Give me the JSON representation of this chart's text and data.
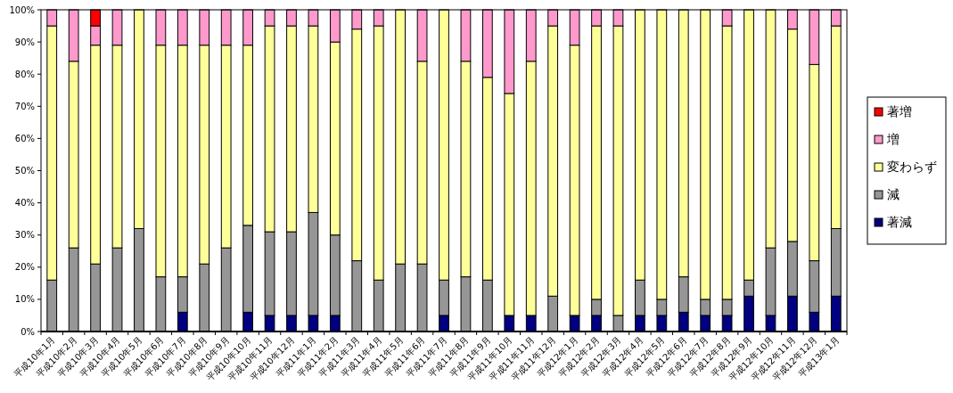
{
  "chart_data": {
    "type": "bar",
    "stacked": true,
    "legend": "right",
    "categories": [
      "平成10年1月",
      "平成10年2月",
      "平成10年3月",
      "平成10年4月",
      "平成10年5月",
      "平成10年6月",
      "平成10年7月",
      "平成10年8月",
      "平成10年9月",
      "平成10年10月",
      "平成10年11月",
      "平成10年12月",
      "平成11年1月",
      "平成11年2月",
      "平成11年3月",
      "平成11年4月",
      "平成11年5月",
      "平成11年6月",
      "平成11年7月",
      "平成11年8月",
      "平成11年9月",
      "平成11年10月",
      "平成11年11月",
      "平成11年12月",
      "平成12年1月",
      "平成12年2月",
      "平成12年3月",
      "平成12年4月",
      "平成12年5月",
      "平成12年6月",
      "平成12年7月",
      "平成12年8月",
      "平成12年9月",
      "平成12年10月",
      "平成12年11月",
      "平成12年12月",
      "平成13年1月"
    ],
    "series": [
      {
        "name": "著減",
        "color": "#000080",
        "values": [
          0,
          0,
          0,
          0,
          0,
          0,
          6,
          0,
          0,
          6,
          5,
          5,
          5,
          5,
          0,
          0,
          0,
          0,
          5,
          0,
          0,
          5,
          5,
          0,
          5,
          5,
          0,
          5,
          5,
          6,
          5,
          5,
          11,
          5,
          11,
          6,
          11
        ]
      },
      {
        "name": "減",
        "color": "#969696",
        "values": [
          16,
          26,
          21,
          26,
          32,
          17,
          11,
          21,
          26,
          27,
          26,
          26,
          32,
          25,
          22,
          16,
          21,
          21,
          11,
          17,
          16,
          0,
          0,
          11,
          0,
          5,
          5,
          11,
          5,
          11,
          5,
          5,
          5,
          21,
          17,
          16,
          21
        ]
      },
      {
        "name": "変わらず",
        "color": "#ffff99",
        "values": [
          79,
          58,
          68,
          63,
          68,
          72,
          72,
          68,
          63,
          56,
          64,
          64,
          58,
          60,
          72,
          79,
          79,
          63,
          84,
          67,
          63,
          69,
          79,
          84,
          84,
          85,
          90,
          84,
          90,
          83,
          90,
          85,
          84,
          74,
          66,
          61,
          63
        ]
      },
      {
        "name": "増",
        "color": "#ff99cc",
        "values": [
          5,
          16,
          6,
          11,
          0,
          11,
          11,
          11,
          11,
          11,
          5,
          5,
          5,
          10,
          6,
          5,
          0,
          16,
          0,
          16,
          21,
          26,
          16,
          5,
          11,
          5,
          5,
          0,
          0,
          0,
          0,
          5,
          0,
          0,
          6,
          17,
          5
        ]
      },
      {
        "name": "著増",
        "color": "#ff0000",
        "values": [
          0,
          0,
          5,
          0,
          0,
          0,
          0,
          0,
          0,
          0,
          0,
          0,
          0,
          0,
          0,
          0,
          0,
          0,
          0,
          0,
          0,
          0,
          0,
          0,
          0,
          0,
          0,
          0,
          0,
          0,
          0,
          0,
          0,
          0,
          0,
          0,
          0
        ]
      }
    ],
    "ylim": [
      0,
      100
    ],
    "yticks": [
      {
        "value": 0,
        "label": "0%"
      },
      {
        "value": 10,
        "label": "10%"
      },
      {
        "value": 20,
        "label": "20%"
      },
      {
        "value": 30,
        "label": "30%"
      },
      {
        "value": 40,
        "label": "40%"
      },
      {
        "value": 50,
        "label": "50%"
      },
      {
        "value": 60,
        "label": "60%"
      },
      {
        "value": 70,
        "label": "70%"
      },
      {
        "value": 80,
        "label": "80%"
      },
      {
        "value": 90,
        "label": "90%"
      },
      {
        "value": 100,
        "label": "100%"
      }
    ]
  }
}
